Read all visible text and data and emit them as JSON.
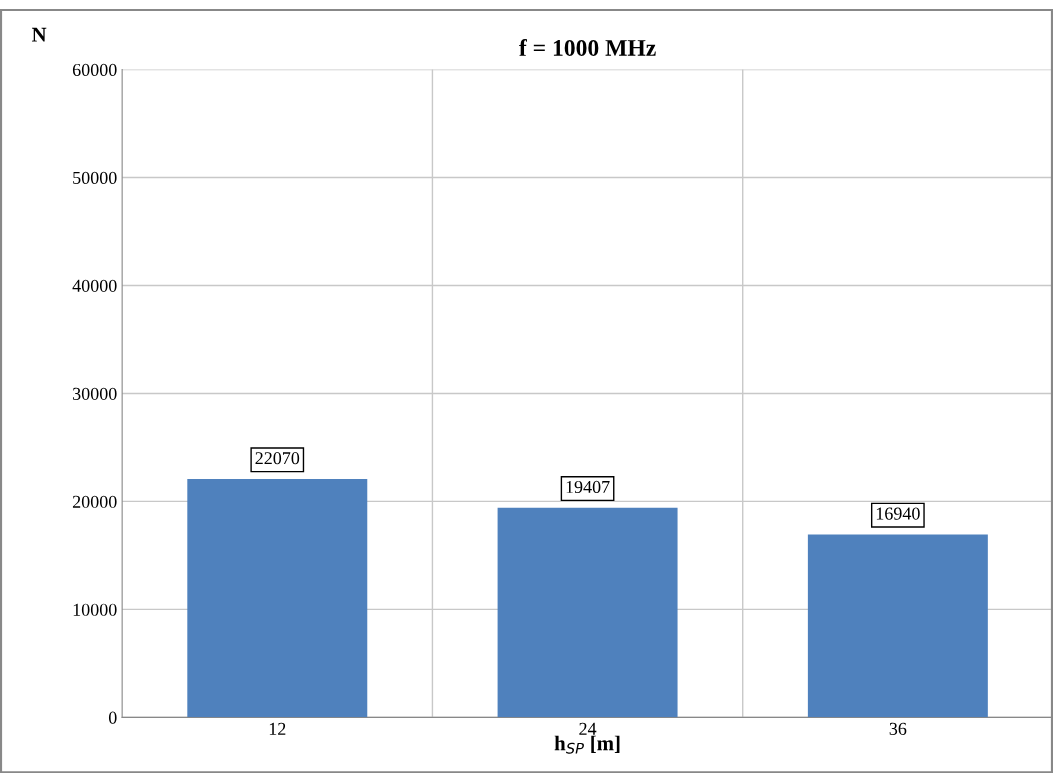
{
  "chart_data": {
    "type": "bar",
    "title": "f = 1000 MHz",
    "xlabel": "h$_{SP}$ [m]",
    "ylabel": "N",
    "categories": [
      "12",
      "24",
      "36"
    ],
    "values": [
      22070,
      19407,
      16940
    ],
    "color": "#4f81bd",
    "ylim": [
      0,
      60000
    ],
    "yticks": [
      0,
      10000,
      20000,
      30000,
      40000,
      50000,
      60000
    ],
    "grid": true,
    "data_labels": true
  }
}
